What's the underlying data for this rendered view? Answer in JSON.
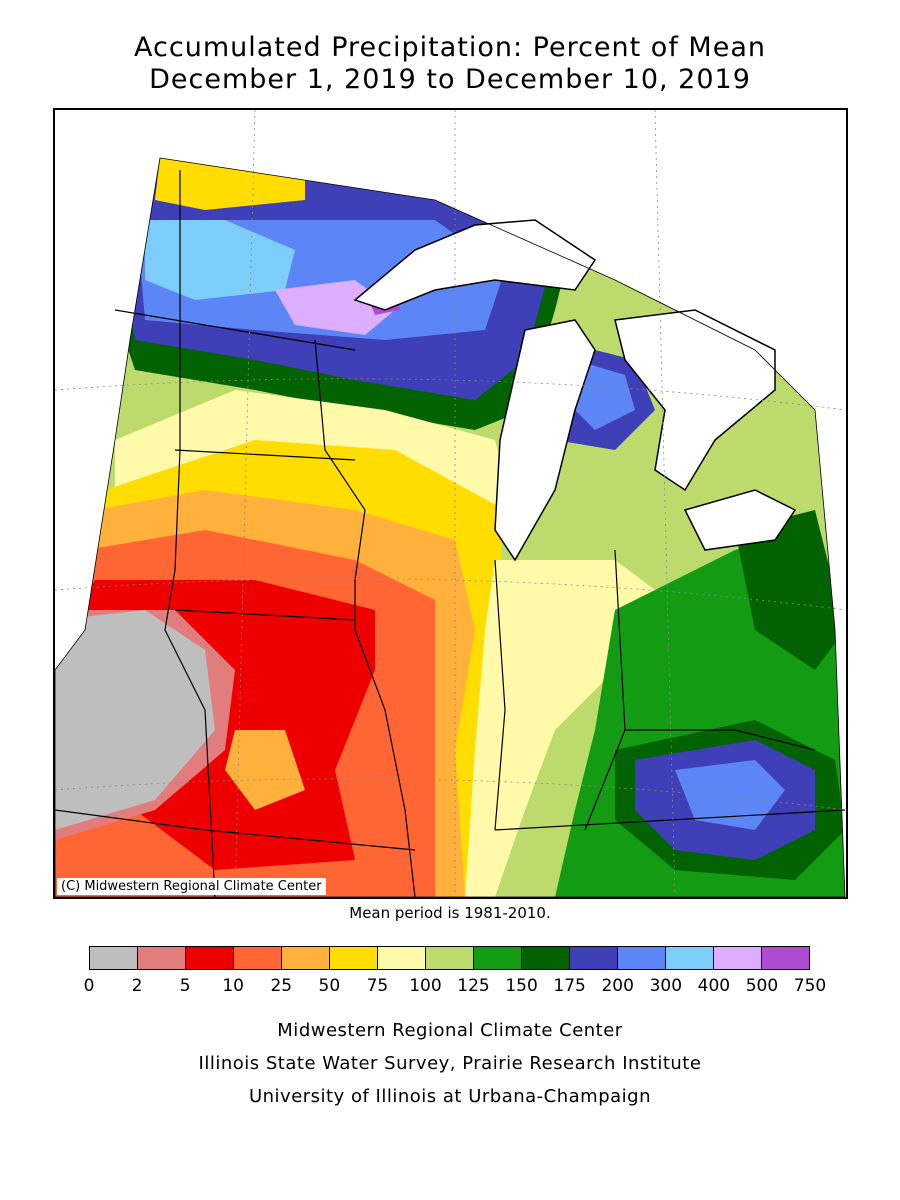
{
  "title": {
    "line1": "Accumulated Precipitation: Percent of Mean",
    "line2": "December 1, 2019 to December 10, 2019"
  },
  "map": {
    "copyright": "(C) Midwestern Regional Climate Center",
    "region": "Midwest"
  },
  "mean_note": "Mean period is 1981-2010.",
  "legend": {
    "tick_labels": [
      "0",
      "2",
      "5",
      "10",
      "25",
      "50",
      "75",
      "100",
      "125",
      "150",
      "175",
      "200",
      "300",
      "400",
      "500",
      "750"
    ],
    "colors": [
      "#bebebe",
      "#e27d7d",
      "#ee0000",
      "#ff6633",
      "#ffb13b",
      "#ffdd00",
      "#fffaaa",
      "#bcdb6c",
      "#139b14",
      "#036303",
      "#3f3fb8",
      "#5c86f5",
      "#7ccdfa",
      "#dcaefd",
      "#ad4bd1"
    ]
  },
  "footer": {
    "line1": "Midwestern Regional Climate Center",
    "line2": "Illinois State Water Survey, Prairie Research Institute",
    "line3": "University of Illinois at Urbana-Champaign"
  }
}
